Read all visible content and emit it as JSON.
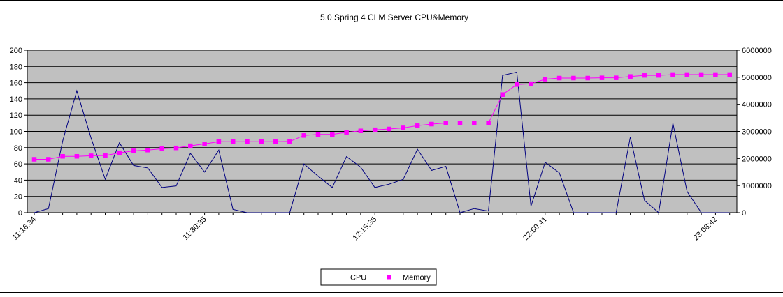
{
  "chart_data": {
    "type": "line",
    "title": "5.0 Spring 4 CLM Server CPU&Memory",
    "xlabel": "",
    "ylabel": "",
    "y_left_lim": [
      0,
      200
    ],
    "y_left_ticks": [
      0,
      20,
      40,
      60,
      80,
      100,
      120,
      140,
      160,
      180,
      200
    ],
    "y_right_lim": [
      0,
      6000000
    ],
    "y_right_ticks": [
      0,
      1000000,
      2000000,
      3000000,
      4000000,
      5000000,
      6000000
    ],
    "x_tick_labels": [
      {
        "index": 0,
        "label": "11:16:34"
      },
      {
        "index": 12,
        "label": "11:30:35"
      },
      {
        "index": 24,
        "label": "12:15:35"
      },
      {
        "index": 36,
        "label": "22:50:41"
      },
      {
        "index": 48,
        "label": "23:08:42"
      }
    ],
    "grid": "horizontal",
    "plot_background": "#c0c0c0",
    "legend_position": "bottom",
    "series": [
      {
        "name": "CPU",
        "axis": "left",
        "color": "#000080",
        "marker": "none",
        "values": [
          0,
          5,
          88,
          150,
          92,
          41,
          86,
          58,
          55,
          31,
          33,
          73,
          50,
          77,
          4,
          0,
          0,
          0,
          0,
          60,
          45,
          31,
          69,
          56,
          31,
          35,
          41,
          78,
          52,
          57,
          0,
          5,
          2,
          169,
          173,
          8,
          62,
          49,
          0,
          0,
          0,
          0,
          93,
          15,
          0,
          110,
          26,
          0,
          0,
          0
        ]
      },
      {
        "name": "Memory",
        "axis": "right",
        "color": "#ff00ff",
        "marker": "square",
        "values": [
          1970000,
          1970000,
          2080000,
          2080000,
          2100000,
          2110000,
          2210000,
          2280000,
          2310000,
          2360000,
          2390000,
          2470000,
          2540000,
          2620000,
          2620000,
          2620000,
          2620000,
          2620000,
          2630000,
          2850000,
          2890000,
          2890000,
          2970000,
          3020000,
          3060000,
          3090000,
          3130000,
          3210000,
          3270000,
          3310000,
          3310000,
          3310000,
          3310000,
          4360000,
          4730000,
          4760000,
          4930000,
          4970000,
          4970000,
          4970000,
          4980000,
          4980000,
          5030000,
          5070000,
          5070000,
          5100000,
          5100000,
          5100000,
          5100000,
          5100000
        ]
      }
    ]
  }
}
